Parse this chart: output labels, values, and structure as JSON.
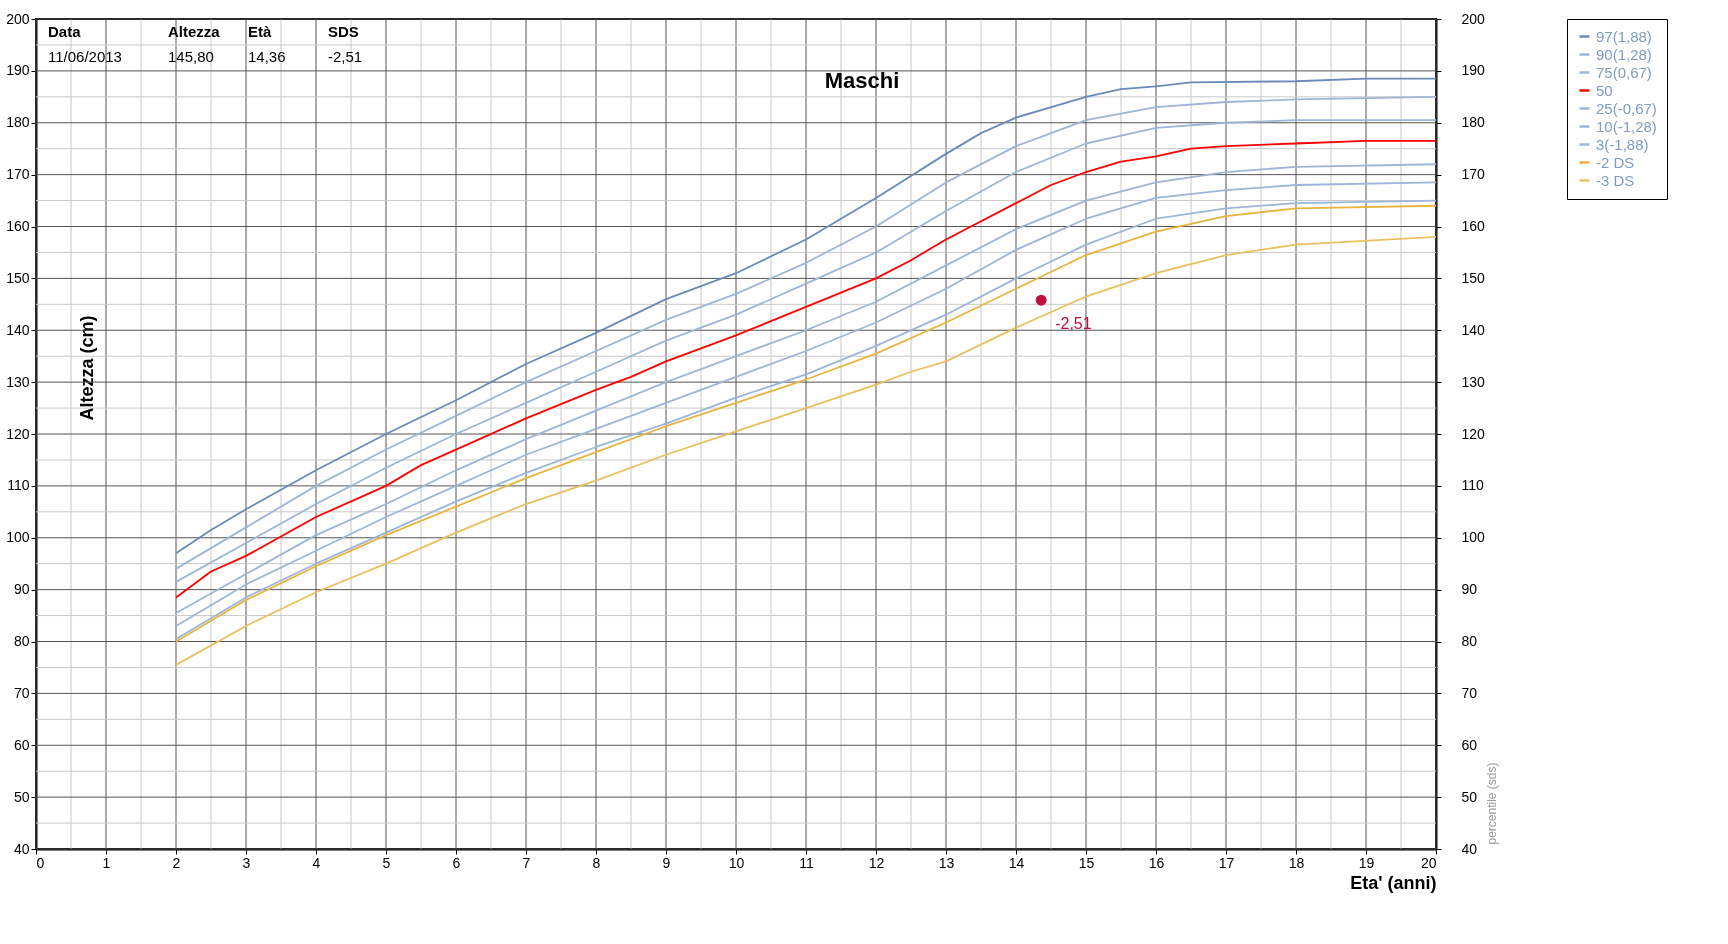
{
  "chart_data": {
    "type": "line",
    "title": "Maschi",
    "xlabel": "Eta' (anni)",
    "ylabel": "Altezza (cm)",
    "y2label": "percentile (sds)",
    "xlim": [
      0,
      20
    ],
    "xticks": [
      0,
      {
        "value": 0.5,
        "label": null
      },
      1,
      {
        "value": 1.5,
        "label": null
      },
      2,
      {
        "value": 2.5,
        "label": null
      },
      3,
      {
        "value": 3.5,
        "label": null
      },
      4,
      {
        "value": 4.5,
        "label": null
      },
      5,
      {
        "value": 5.5,
        "label": null
      },
      6,
      {
        "value": 6.5,
        "label": null
      },
      7,
      {
        "value": 7.5,
        "label": null
      },
      8,
      {
        "value": 8.5,
        "label": null
      },
      9,
      {
        "value": 9.5,
        "label": null
      },
      10,
      {
        "value": 10.5,
        "label": null
      },
      11,
      {
        "value": 11.5,
        "label": null
      },
      12,
      {
        "value": 12.5,
        "label": null
      },
      13,
      {
        "value": 13.5,
        "label": null
      },
      14,
      {
        "value": 14.5,
        "label": null
      },
      15,
      {
        "value": 15.5,
        "label": null
      },
      16,
      {
        "value": 16.5,
        "label": null
      },
      17,
      {
        "value": 17.5,
        "label": null
      },
      18,
      {
        "value": 18.5,
        "label": null
      },
      19,
      {
        "value": 19.5,
        "label": null
      },
      20
    ],
    "ylim": [
      40,
      200
    ],
    "yticks": [
      40,
      {
        "value": 45,
        "label": null
      },
      50,
      {
        "value": 55,
        "label": null
      },
      60,
      {
        "value": 65,
        "label": null
      },
      70,
      {
        "value": 75,
        "label": null
      },
      80,
      {
        "value": 85,
        "label": null
      },
      90,
      {
        "value": 95,
        "label": null
      },
      100,
      {
        "value": 105,
        "label": null
      },
      110,
      {
        "value": 115,
        "label": null
      },
      120,
      {
        "value": 125,
        "label": null
      },
      130,
      {
        "value": 135,
        "label": null
      },
      140,
      {
        "value": 145,
        "label": null
      },
      150,
      {
        "value": 155,
        "label": null
      },
      160,
      {
        "value": 165,
        "label": null
      },
      170,
      {
        "value": 175,
        "label": null
      },
      180,
      {
        "value": 185,
        "label": null
      },
      190,
      {
        "value": 195,
        "label": null
      },
      200
    ],
    "y2lim": [
      40,
      200
    ],
    "y2ticks": [
      40,
      50,
      60,
      70,
      80,
      90,
      100,
      110,
      120,
      130,
      140,
      150,
      160,
      170,
      180,
      190,
      200
    ],
    "grid": true,
    "legend": "top right",
    "annotations": [
      "Data",
      "Altezza",
      "Età",
      "SDS",
      "11/06/2013",
      "145,80",
      "14,36",
      "-2,51",
      {
        "text": "-2,51",
        "x": 14.36,
        "y": 145.8
      }
    ],
    "series": [
      {
        "name": "97(1,88)",
        "color": "#6a8bb8",
        "x": [
          2,
          2.5,
          3,
          4,
          5,
          6,
          7,
          8,
          9,
          10,
          11,
          12,
          13,
          13.5,
          14,
          15,
          15.5,
          16,
          16.5,
          18,
          19,
          20
        ],
        "values": [
          97,
          101.5,
          105.5,
          113,
          120,
          126.5,
          133.5,
          139.5,
          146,
          151,
          157.5,
          165.5,
          174,
          178,
          181,
          185,
          186.5,
          187,
          187.8,
          188,
          188.5,
          188.5
        ]
      },
      {
        "name": "90(1,28)",
        "color": "#9db6d6",
        "x": [
          2,
          3,
          4,
          5,
          6,
          7,
          8,
          9,
          10,
          11,
          12,
          13,
          14,
          15,
          16,
          17,
          18,
          20
        ],
        "values": [
          94,
          102,
          110,
          117,
          123.5,
          130,
          136,
          142,
          147,
          153,
          160,
          168.5,
          175.5,
          180.5,
          183,
          184,
          184.5,
          185
        ]
      },
      {
        "name": "75(0,67)",
        "color": "#9db6d6",
        "x": [
          2,
          3,
          4,
          5,
          6,
          7,
          8,
          9,
          10,
          11,
          12,
          13,
          14,
          15,
          16,
          17,
          18,
          20
        ],
        "values": [
          91.5,
          99,
          106.5,
          113.5,
          120,
          126,
          132,
          138,
          143,
          149,
          155,
          163,
          170.5,
          176,
          179,
          180,
          180.5,
          180.5
        ]
      },
      {
        "name": "50",
        "color": "#ff0000",
        "x": [
          2,
          2.5,
          3,
          4,
          5,
          5.5,
          6,
          7,
          8,
          8.5,
          9,
          10,
          11,
          12,
          12.5,
          13,
          14,
          14.5,
          15,
          15.5,
          16,
          16.5,
          17,
          18,
          19,
          20
        ],
        "values": [
          88.5,
          93.5,
          96.5,
          104,
          110,
          114,
          117,
          123,
          128.5,
          131,
          134,
          139,
          144.5,
          150,
          153.5,
          157.5,
          164.5,
          168,
          170.5,
          172.5,
          173.5,
          175,
          175.5,
          176,
          176.5,
          176.5
        ]
      },
      {
        "name": "25(-0,67)",
        "color": "#9db6d6",
        "x": [
          2,
          3,
          4,
          5,
          6,
          7,
          8,
          9,
          10,
          11,
          12,
          13,
          14,
          15,
          16,
          17,
          18,
          20
        ],
        "values": [
          85.5,
          93,
          100.5,
          106.5,
          113,
          119,
          124.5,
          130,
          135,
          140,
          145.5,
          152.5,
          159.5,
          165,
          168.5,
          170.5,
          171.5,
          172
        ]
      },
      {
        "name": "10(-1,28)",
        "color": "#9db6d6",
        "x": [
          2,
          3,
          4,
          5,
          6,
          7,
          8,
          9,
          10,
          11,
          12,
          13,
          14,
          15,
          16,
          17,
          18,
          20
        ],
        "values": [
          83,
          91,
          97.5,
          104,
          110,
          116,
          121,
          126,
          131,
          136,
          141.5,
          148,
          155.5,
          161.5,
          165.5,
          167,
          168,
          168.5
        ]
      },
      {
        "name": "3(-1,88)",
        "color": "#9db6d6",
        "x": [
          2,
          3,
          4,
          5,
          6,
          7,
          8,
          9,
          10,
          11,
          12,
          13,
          14,
          15,
          16,
          17,
          18,
          20
        ],
        "values": [
          80.5,
          88.5,
          95,
          101,
          107,
          112.5,
          117.5,
          122,
          127,
          131.5,
          137,
          143,
          150,
          156.5,
          161.5,
          163.5,
          164.5,
          165
        ]
      },
      {
        "name": "-2 DS",
        "color": "#e8b440",
        "x": [
          2,
          3,
          4,
          5,
          6,
          7,
          8,
          9,
          10,
          11,
          12,
          13,
          14,
          15,
          16,
          17,
          18,
          20
        ],
        "values": [
          80,
          88,
          94.5,
          100.5,
          106,
          111.5,
          116.5,
          121.5,
          126,
          130.5,
          135.5,
          141.5,
          148,
          154.5,
          159,
          162,
          163.5,
          164
        ]
      },
      {
        "name": "-3 DS",
        "color": "#e8c060",
        "x": [
          2,
          3,
          4,
          5,
          6,
          7,
          8,
          9,
          10,
          11,
          12,
          12.5,
          13,
          14,
          15,
          16,
          17,
          18,
          20
        ],
        "values": [
          75.5,
          83,
          89.5,
          95,
          101,
          106.5,
          111,
          116,
          120.5,
          125,
          129.5,
          132,
          134,
          140.5,
          146.5,
          151,
          154.5,
          156.5,
          158
        ]
      },
      {
        "type": "scatter",
        "color": "#c0103f",
        "x": [
          14.36
        ],
        "values": [
          145.8
        ],
        "marker": "circle"
      }
    ]
  }
}
